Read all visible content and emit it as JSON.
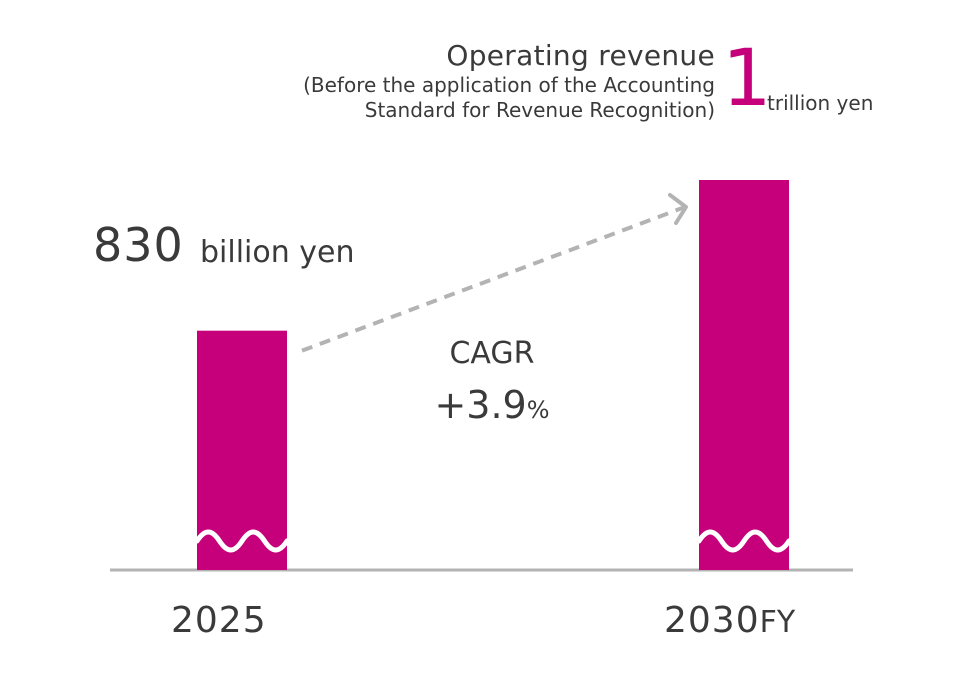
{
  "colors": {
    "bar": "#c5007a",
    "axis": "#b3b3b3",
    "arrow": "#b3b3b3",
    "text": "#3a3a3a",
    "accent": "#c5007a"
  },
  "headline": {
    "title": "Operating revenue",
    "subtitle_line1": "(Before the application of the Accounting",
    "subtitle_line2": "Standard for Revenue Recognition)",
    "target_number": "1",
    "target_unit": "trillion yen"
  },
  "cagr": {
    "label": "CAGR",
    "value": "+3.9",
    "unit": "%"
  },
  "chart_data": {
    "type": "bar",
    "title": "Operating revenue (Before the application of the Accounting Standard for Revenue Recognition)",
    "unit": "billion yen",
    "categories": [
      "2025",
      "2030"
    ],
    "category_suffix": "FY",
    "values": [
      830,
      1000
    ],
    "value_labels": [
      {
        "number": "830",
        "unit": "billion yen"
      },
      {
        "number": "1",
        "unit": "trillion yen"
      }
    ],
    "axis_break": true,
    "cagr_percent": 3.9,
    "xlabel": "",
    "ylabel": ""
  }
}
